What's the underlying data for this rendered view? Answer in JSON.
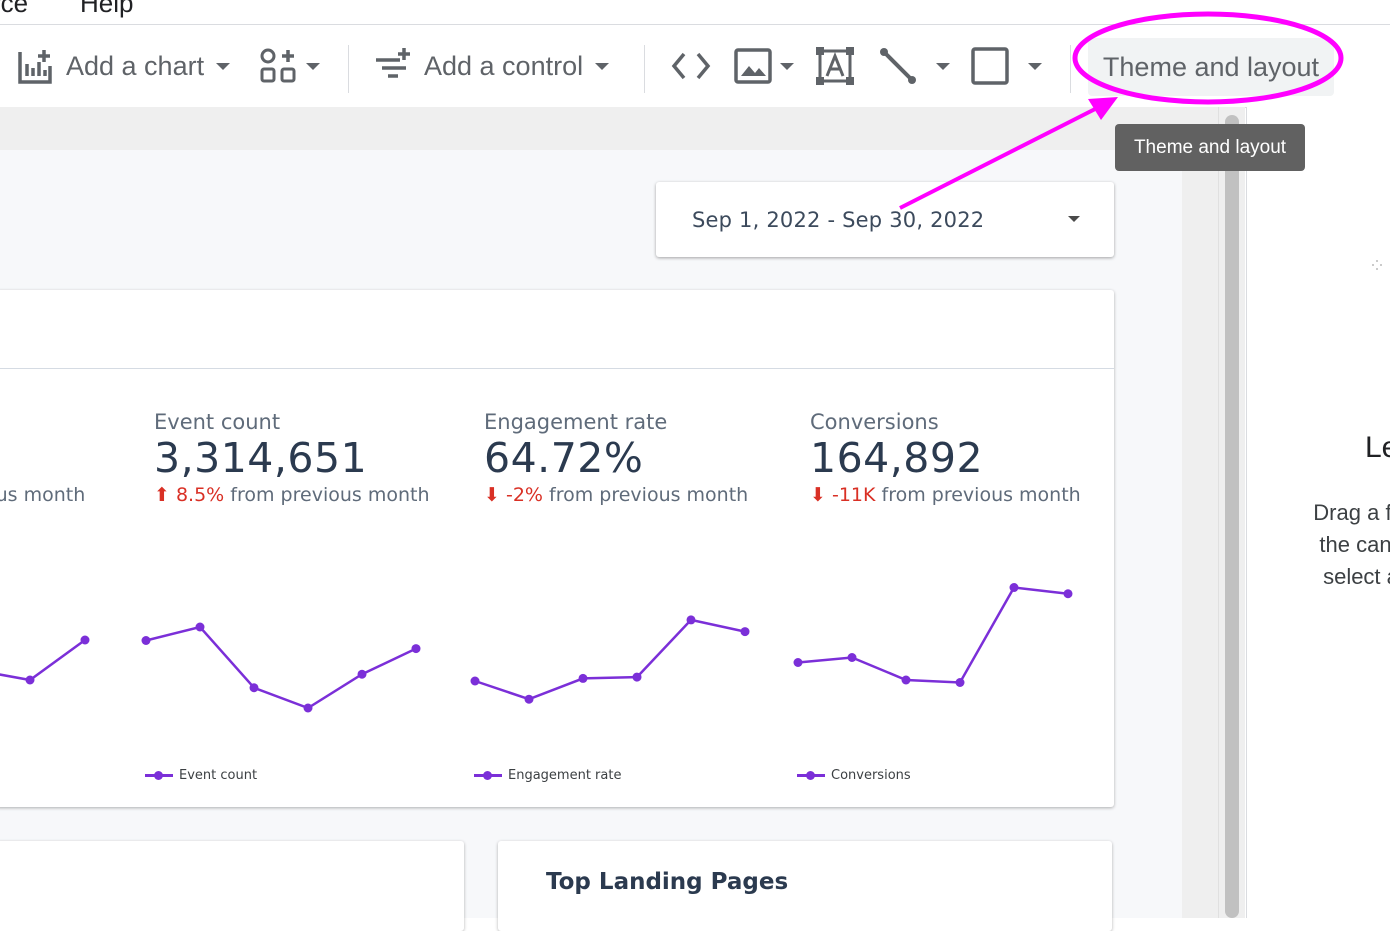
{
  "menubar": {
    "source_label": "rce",
    "help_label": "Help"
  },
  "toolbar": {
    "add_chart_label": "Add a chart",
    "add_control_label": "Add a control",
    "theme_layout_label": "Theme and layout"
  },
  "tooltip": {
    "text": "Theme and layout"
  },
  "date_range": {
    "value": "Sep 1, 2022 - Sep 30, 2022"
  },
  "metrics": [
    {
      "label": "",
      "value": "",
      "change": "",
      "change_suffix": "ous month",
      "direction": ""
    },
    {
      "label": "Event count",
      "value": "3,314,651",
      "change": "8.5%",
      "change_suffix": "from previous month",
      "direction": "up"
    },
    {
      "label": "Engagement rate",
      "value": "64.72%",
      "change": "-2%",
      "change_suffix": "from previous month",
      "direction": "down"
    },
    {
      "label": "Conversions",
      "value": "164,892",
      "change": "-11K",
      "change_suffix": "from previous month",
      "direction": "down"
    }
  ],
  "chart_data": [
    {
      "type": "line",
      "title": "",
      "series": [
        {
          "name": "",
          "values": [
            3,
            2,
            6
          ]
        }
      ]
    },
    {
      "type": "line",
      "title": "Event count",
      "series": [
        {
          "name": "Event count",
          "values": [
            7,
            8,
            3.5,
            2,
            4.5,
            6.4
          ]
        }
      ]
    },
    {
      "type": "line",
      "title": "Engagement rate",
      "series": [
        {
          "name": "Engagement rate",
          "values": [
            3,
            1.6,
            3.2,
            3.3,
            7.7,
            6.8
          ]
        }
      ]
    },
    {
      "type": "line",
      "title": "Conversions",
      "series": [
        {
          "name": "Conversions",
          "values": [
            3,
            3.4,
            1.6,
            1.4,
            9,
            8.5
          ]
        }
      ]
    }
  ],
  "legends": [
    "Event count",
    "Engagement rate",
    "Conversions"
  ],
  "bottom_cards": {
    "right_title": "Top Landing Pages"
  },
  "right_panel": {
    "title": "Le",
    "lines": [
      "Drag a fie",
      "the canv",
      "select a"
    ]
  },
  "colors": {
    "series": "#7b2fd8",
    "annotation": "#ff00ff",
    "negative": "#d93025"
  }
}
